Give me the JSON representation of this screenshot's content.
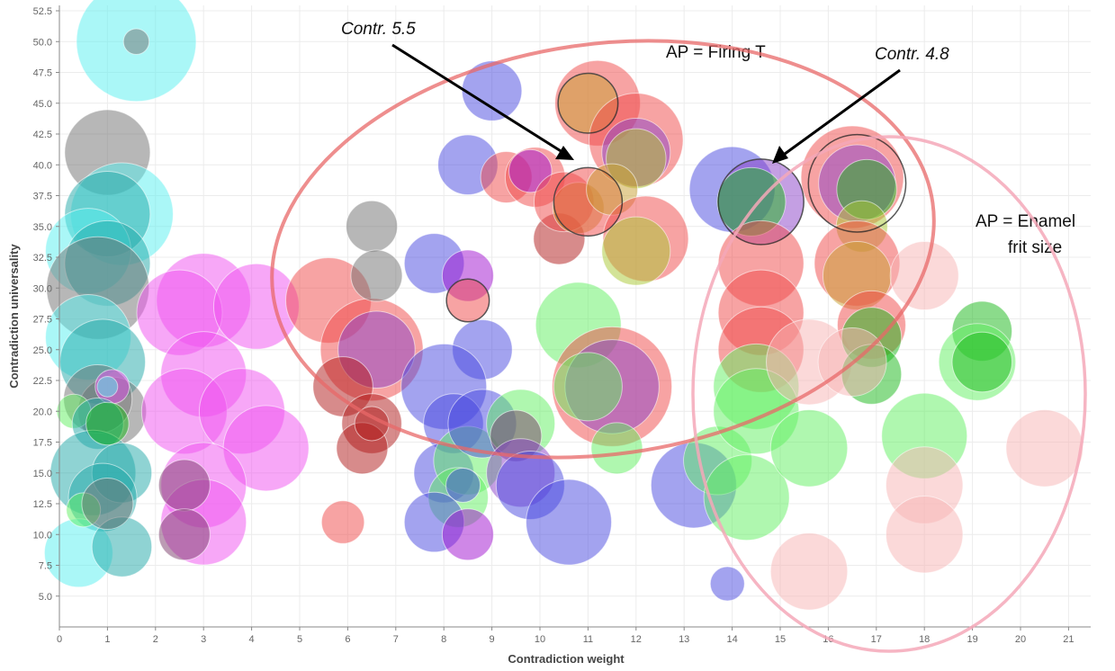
{
  "chart_data": {
    "type": "scatter",
    "subtype": "bubble",
    "title": "",
    "xlabel": "Contradiction weight",
    "ylabel": "Contradiction universality",
    "xlim": [
      0,
      21.5
    ],
    "ylim": [
      2.5,
      53
    ],
    "x_ticks": [
      "0",
      "1",
      "2",
      "3",
      "4",
      "5",
      "6",
      "7",
      "8",
      "9",
      "10",
      "11",
      "12",
      "13",
      "14",
      "15",
      "16",
      "17",
      "18",
      "19",
      "20",
      "21"
    ],
    "y_ticks": [
      "5.0",
      "7.5",
      "10.0",
      "12.5",
      "15.0",
      "17.5",
      "20.0",
      "22.5",
      "25.0",
      "27.5",
      "30.0",
      "32.5",
      "35.0",
      "37.5",
      "40.0",
      "42.5",
      "45.0",
      "47.5",
      "50.0",
      "52.5"
    ],
    "grid": true,
    "legend": "none",
    "colors": {
      "cyan": "#55f0f0",
      "gray": "#707070",
      "teal": "#20a8a8",
      "magenta": "#f050f0",
      "plum": "#7a3a6a",
      "red": "#f04848",
      "darkred": "#b01818",
      "pink": "#f8b4b4",
      "blue": "#4848e0",
      "violet": "#8a40c8",
      "purple": "#a010d0",
      "green": "#60f060",
      "dgreen": "#18b818",
      "olive": "#a8c830",
      "gold": "#c8a030"
    },
    "bubbles": [
      {
        "x": 1.6,
        "y": 50,
        "size": 7,
        "color": "cyan"
      },
      {
        "x": 1.6,
        "y": 50,
        "size": 1.5,
        "color": "gray"
      },
      {
        "x": 1.0,
        "y": 41,
        "size": 5,
        "color": "gray"
      },
      {
        "x": 1.3,
        "y": 36,
        "size": 6,
        "color": "cyan"
      },
      {
        "x": 1.0,
        "y": 36,
        "size": 5,
        "color": "teal"
      },
      {
        "x": 0.6,
        "y": 33,
        "size": 5,
        "color": "cyan"
      },
      {
        "x": 1.0,
        "y": 32,
        "size": 5,
        "color": "teal"
      },
      {
        "x": 0.8,
        "y": 30,
        "size": 6,
        "color": "gray"
      },
      {
        "x": 0.6,
        "y": 26,
        "size": 5,
        "color": "cyan"
      },
      {
        "x": 0.9,
        "y": 24,
        "size": 5,
        "color": "teal"
      },
      {
        "x": 1.1,
        "y": 20,
        "size": 4,
        "color": "gray"
      },
      {
        "x": 0.8,
        "y": 21,
        "size": 4,
        "color": "gray"
      },
      {
        "x": 1.1,
        "y": 22,
        "size": 2,
        "color": "magenta"
      },
      {
        "x": 1.0,
        "y": 22,
        "size": 1.2,
        "color": "cyan"
      },
      {
        "x": 0.3,
        "y": 20,
        "size": 2,
        "color": "green"
      },
      {
        "x": 0.8,
        "y": 19,
        "size": 3,
        "color": "teal"
      },
      {
        "x": 0.7,
        "y": 15,
        "size": 5,
        "color": "teal"
      },
      {
        "x": 1.3,
        "y": 15,
        "size": 3.5,
        "color": "teal"
      },
      {
        "x": 0.9,
        "y": 13,
        "size": 4,
        "color": "teal"
      },
      {
        "x": 0.4,
        "y": 8.5,
        "size": 4,
        "color": "cyan"
      },
      {
        "x": 1.3,
        "y": 9,
        "size": 3.5,
        "color": "teal"
      },
      {
        "x": 0.5,
        "y": 12,
        "size": 2,
        "color": "green"
      },
      {
        "x": 1.0,
        "y": 12.5,
        "size": 3,
        "color": "gray"
      },
      {
        "x": 1.0,
        "y": 19,
        "size": 2.5,
        "color": "dgreen"
      },
      {
        "x": 3.0,
        "y": 29,
        "size": 5.5,
        "color": "magenta"
      },
      {
        "x": 2.5,
        "y": 28,
        "size": 5,
        "color": "magenta"
      },
      {
        "x": 4.1,
        "y": 28.5,
        "size": 5,
        "color": "magenta"
      },
      {
        "x": 3.0,
        "y": 23,
        "size": 5,
        "color": "magenta"
      },
      {
        "x": 2.6,
        "y": 20,
        "size": 5,
        "color": "magenta"
      },
      {
        "x": 3.8,
        "y": 20,
        "size": 5,
        "color": "magenta"
      },
      {
        "x": 4.3,
        "y": 17,
        "size": 5,
        "color": "magenta"
      },
      {
        "x": 3.0,
        "y": 14,
        "size": 5,
        "color": "magenta"
      },
      {
        "x": 3.0,
        "y": 11,
        "size": 5,
        "color": "magenta"
      },
      {
        "x": 2.6,
        "y": 14,
        "size": 3,
        "color": "plum"
      },
      {
        "x": 2.6,
        "y": 10,
        "size": 3,
        "color": "plum"
      },
      {
        "x": 5.6,
        "y": 29,
        "size": 5,
        "color": "red"
      },
      {
        "x": 6.5,
        "y": 25,
        "size": 6,
        "color": "red"
      },
      {
        "x": 6.6,
        "y": 25,
        "size": 4.5,
        "color": "violet"
      },
      {
        "x": 6.5,
        "y": 35,
        "size": 3,
        "color": "gray"
      },
      {
        "x": 6.6,
        "y": 31,
        "size": 3,
        "color": "gray"
      },
      {
        "x": 5.9,
        "y": 22,
        "size": 3.5,
        "color": "darkred"
      },
      {
        "x": 6.5,
        "y": 19,
        "size": 3.5,
        "color": "darkred"
      },
      {
        "x": 6.3,
        "y": 17,
        "size": 3,
        "color": "darkred"
      },
      {
        "x": 6.5,
        "y": 19,
        "size": 2,
        "color": "darkred"
      },
      {
        "x": 5.9,
        "y": 11,
        "size": 2.5,
        "color": "red"
      },
      {
        "x": 7.8,
        "y": 32,
        "size": 3.5,
        "color": "blue"
      },
      {
        "x": 8.5,
        "y": 31,
        "size": 3,
        "color": "purple"
      },
      {
        "x": 8.5,
        "y": 29,
        "size": 2.5,
        "color": "red"
      },
      {
        "x": 8.8,
        "y": 25,
        "size": 3.5,
        "color": "blue"
      },
      {
        "x": 8.0,
        "y": 22,
        "size": 5,
        "color": "blue"
      },
      {
        "x": 8.2,
        "y": 19,
        "size": 3.5,
        "color": "blue"
      },
      {
        "x": 8.0,
        "y": 15,
        "size": 3.5,
        "color": "blue"
      },
      {
        "x": 8.5,
        "y": 16,
        "size": 4,
        "color": "green"
      },
      {
        "x": 8.8,
        "y": 19,
        "size": 4,
        "color": "blue"
      },
      {
        "x": 9.6,
        "y": 19,
        "size": 4,
        "color": "green"
      },
      {
        "x": 9.5,
        "y": 18,
        "size": 3,
        "color": "plum"
      },
      {
        "x": 8.3,
        "y": 13,
        "size": 3.5,
        "color": "green"
      },
      {
        "x": 8.4,
        "y": 14,
        "size": 2,
        "color": "blue"
      },
      {
        "x": 7.8,
        "y": 11,
        "size": 3.5,
        "color": "blue"
      },
      {
        "x": 8.5,
        "y": 10,
        "size": 3,
        "color": "purple"
      },
      {
        "x": 9.6,
        "y": 15,
        "size": 4,
        "color": "violet"
      },
      {
        "x": 9.8,
        "y": 14,
        "size": 4,
        "color": "blue"
      },
      {
        "x": 9.0,
        "y": 46,
        "size": 3.5,
        "color": "blue"
      },
      {
        "x": 8.5,
        "y": 40,
        "size": 3.5,
        "color": "blue"
      },
      {
        "x": 9.3,
        "y": 39,
        "size": 3,
        "color": "red"
      },
      {
        "x": 9.9,
        "y": 39,
        "size": 3.5,
        "color": "red"
      },
      {
        "x": 9.8,
        "y": 39.5,
        "size": 2.5,
        "color": "purple"
      },
      {
        "x": 10.4,
        "y": 34,
        "size": 3,
        "color": "darkred"
      },
      {
        "x": 10.5,
        "y": 37,
        "size": 3.5,
        "color": "red"
      },
      {
        "x": 10.8,
        "y": 36.5,
        "size": 3,
        "color": "gold"
      },
      {
        "x": 11.0,
        "y": 37,
        "size": 4,
        "color": "red"
      },
      {
        "x": 11.2,
        "y": 45,
        "size": 5,
        "color": "red"
      },
      {
        "x": 11.0,
        "y": 45,
        "size": 3.5,
        "color": "gold"
      },
      {
        "x": 12.0,
        "y": 42,
        "size": 5.5,
        "color": "red"
      },
      {
        "x": 12.0,
        "y": 41,
        "size": 4,
        "color": "violet"
      },
      {
        "x": 12.0,
        "y": 40.5,
        "size": 3.5,
        "color": "olive"
      },
      {
        "x": 11.5,
        "y": 38,
        "size": 3,
        "color": "gold"
      },
      {
        "x": 12.2,
        "y": 34,
        "size": 5,
        "color": "red"
      },
      {
        "x": 12.0,
        "y": 33,
        "size": 4,
        "color": "olive"
      },
      {
        "x": 10.8,
        "y": 27,
        "size": 5,
        "color": "green"
      },
      {
        "x": 11.5,
        "y": 22,
        "size": 7,
        "color": "red"
      },
      {
        "x": 11.5,
        "y": 22,
        "size": 5.5,
        "color": "violet"
      },
      {
        "x": 11.0,
        "y": 22,
        "size": 4,
        "color": "green"
      },
      {
        "x": 10.6,
        "y": 11,
        "size": 5,
        "color": "blue"
      },
      {
        "x": 11.6,
        "y": 17,
        "size": 3,
        "color": "green"
      },
      {
        "x": 13.2,
        "y": 14,
        "size": 5,
        "color": "blue"
      },
      {
        "x": 13.7,
        "y": 16,
        "size": 4,
        "color": "green"
      },
      {
        "x": 13.9,
        "y": 6,
        "size": 2,
        "color": "blue"
      },
      {
        "x": 14.0,
        "y": 38,
        "size": 5,
        "color": "blue"
      },
      {
        "x": 14.6,
        "y": 37,
        "size": 5,
        "color": "violet"
      },
      {
        "x": 14.4,
        "y": 37,
        "size": 4,
        "color": "dgreen"
      },
      {
        "x": 14.6,
        "y": 32,
        "size": 5,
        "color": "red"
      },
      {
        "x": 14.6,
        "y": 28,
        "size": 5,
        "color": "red"
      },
      {
        "x": 14.6,
        "y": 25,
        "size": 5,
        "color": "red"
      },
      {
        "x": 14.5,
        "y": 22,
        "size": 5,
        "color": "green"
      },
      {
        "x": 14.5,
        "y": 20,
        "size": 5,
        "color": "green"
      },
      {
        "x": 14.3,
        "y": 13,
        "size": 5,
        "color": "green"
      },
      {
        "x": 15.6,
        "y": 24,
        "size": 5,
        "color": "pink"
      },
      {
        "x": 15.6,
        "y": 17,
        "size": 4.5,
        "color": "green"
      },
      {
        "x": 16.5,
        "y": 39,
        "size": 6,
        "color": "red"
      },
      {
        "x": 16.6,
        "y": 38.5,
        "size": 4.5,
        "color": "violet"
      },
      {
        "x": 16.8,
        "y": 38,
        "size": 3.5,
        "color": "dgreen"
      },
      {
        "x": 16.7,
        "y": 35,
        "size": 3,
        "color": "olive"
      },
      {
        "x": 16.6,
        "y": 32,
        "size": 5,
        "color": "red"
      },
      {
        "x": 16.6,
        "y": 31,
        "size": 4,
        "color": "gold"
      },
      {
        "x": 16.9,
        "y": 27,
        "size": 4,
        "color": "red"
      },
      {
        "x": 16.9,
        "y": 26,
        "size": 3.5,
        "color": "dgreen"
      },
      {
        "x": 16.9,
        "y": 23,
        "size": 3.5,
        "color": "dgreen"
      },
      {
        "x": 16.5,
        "y": 24,
        "size": 4,
        "color": "pink"
      },
      {
        "x": 18.0,
        "y": 31,
        "size": 4,
        "color": "pink"
      },
      {
        "x": 18.0,
        "y": 18,
        "size": 5,
        "color": "green"
      },
      {
        "x": 18.0,
        "y": 14,
        "size": 4.5,
        "color": "pink"
      },
      {
        "x": 18.0,
        "y": 10,
        "size": 4.5,
        "color": "pink"
      },
      {
        "x": 19.2,
        "y": 26.5,
        "size": 3.5,
        "color": "dgreen"
      },
      {
        "x": 19.1,
        "y": 24,
        "size": 4.5,
        "color": "green"
      },
      {
        "x": 19.2,
        "y": 24,
        "size": 3.5,
        "color": "dgreen"
      },
      {
        "x": 20.5,
        "y": 17,
        "size": 4.5,
        "color": "pink"
      },
      {
        "x": 15.6,
        "y": 7,
        "size": 4.5,
        "color": "pink"
      }
    ],
    "annotations": {
      "contr_55": "Contr. 5.5",
      "firing": "AP = Firing T",
      "contr_48": "Contr. 4.8",
      "enamel_1": "AP = Enamel",
      "enamel_2": "frit size"
    }
  }
}
